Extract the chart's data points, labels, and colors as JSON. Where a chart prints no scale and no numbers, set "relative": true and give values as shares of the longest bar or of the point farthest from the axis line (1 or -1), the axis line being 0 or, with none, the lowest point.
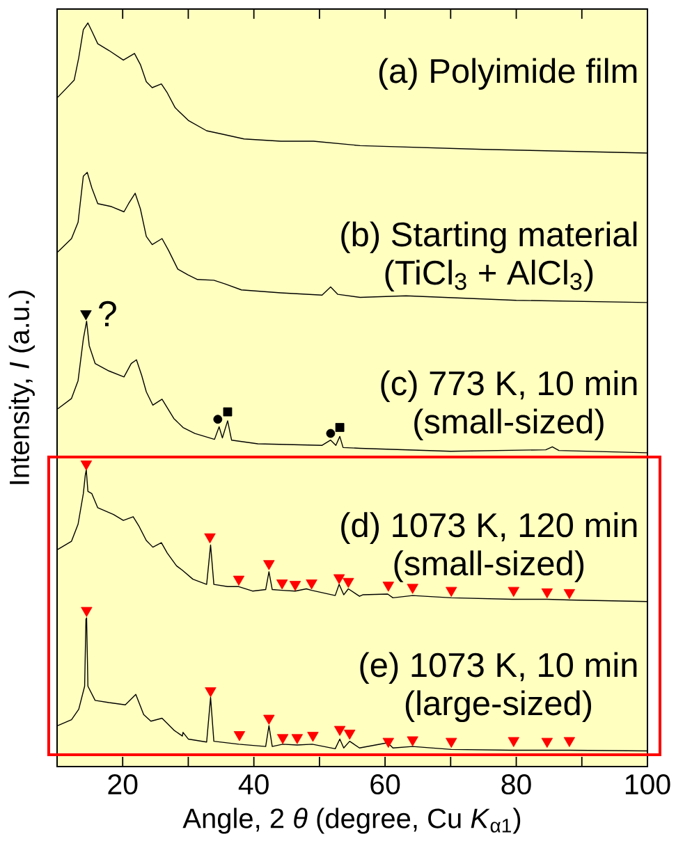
{
  "chart_data": {
    "type": "line",
    "relative": true,
    "xlabel": "Angle, 2 *θ* (degree, Cu *K*$_{α1}$)",
    "ylabel": "Intensity, *I* (a.u.)",
    "xlim": [
      10,
      100
    ],
    "xticks": [
      20,
      {
        "value": 30,
        "label": null
      },
      40,
      {
        "value": 50,
        "label": null
      },
      60,
      {
        "value": 70,
        "label": null
      },
      80,
      {
        "value": 90,
        "label": null
      },
      100
    ],
    "series": [
      {
        "name": "(a) Polyimide film",
        "color": "#000000",
        "x": [
          10.1,
          12.6,
          13.3,
          14.0,
          14.7,
          15.3,
          16.2,
          17.9,
          20.1,
          21.8,
          22.7,
          23.6,
          24.5,
          25.9,
          26.8,
          28.0,
          30.0,
          32.8,
          34.9,
          38.5,
          44.1,
          49.1,
          56.2,
          75.0,
          99.9
        ],
        "values": [
          0.9,
          0.923,
          0.953,
          0.991,
          1.0,
          0.989,
          0.972,
          0.963,
          0.95,
          0.959,
          0.944,
          0.921,
          0.913,
          0.918,
          0.906,
          0.886,
          0.869,
          0.855,
          0.851,
          0.844,
          0.841,
          0.841,
          0.835,
          0.83,
          0.825
        ]
      },
      {
        "name": "(b) Starting material",
        "color": "#000000",
        "x": [
          10.1,
          12.2,
          13.2,
          14.0,
          14.6,
          15.3,
          16.2,
          18.3,
          20.2,
          20.9,
          21.9,
          22.7,
          23.6,
          24.5,
          26.0,
          27.0,
          28.4,
          30.0,
          31.4,
          33.9,
          35.6,
          38.1,
          44.1,
          50.4,
          51.7,
          52.8,
          56.2,
          63.2,
          80.0,
          99.9
        ],
        "values": [
          0.692,
          0.71,
          0.732,
          0.794,
          0.799,
          0.778,
          0.757,
          0.753,
          0.746,
          0.757,
          0.771,
          0.75,
          0.713,
          0.702,
          0.71,
          0.694,
          0.669,
          0.661,
          0.655,
          0.654,
          0.649,
          0.641,
          0.637,
          0.634,
          0.645,
          0.635,
          0.631,
          0.633,
          0.627,
          0.624
        ]
      },
      {
        "name": "(c) 773 K, 10 min",
        "color": "#000000",
        "x": [
          10.1,
          12.2,
          13.2,
          14.0,
          14.5,
          14.9,
          15.8,
          17.9,
          20.2,
          21.3,
          22.1,
          22.9,
          23.6,
          24.6,
          26.0,
          27.8,
          29.2,
          31.0,
          34.0,
          34.7,
          35.2,
          36.0,
          36.6,
          40.6,
          50.4,
          51.7,
          52.5,
          53.1,
          53.6,
          56.2,
          70.0,
          84.5,
          85.5,
          86.5,
          99.9
        ],
        "values": [
          0.481,
          0.495,
          0.519,
          0.575,
          0.599,
          0.566,
          0.542,
          0.532,
          0.524,
          0.542,
          0.547,
          0.526,
          0.504,
          0.486,
          0.494,
          0.468,
          0.456,
          0.448,
          0.44,
          0.457,
          0.442,
          0.465,
          0.439,
          0.434,
          0.432,
          0.439,
          0.432,
          0.444,
          0.429,
          0.428,
          0.424,
          0.426,
          0.43,
          0.425,
          0.422
        ]
      },
      {
        "name": "(d) 1073 K, 120 min",
        "color": "#000000",
        "x": [
          10.1,
          12.2,
          13.2,
          14.0,
          14.3,
          14.45,
          14.7,
          15.3,
          16.2,
          18.6,
          20.1,
          21.6,
          22.5,
          23.6,
          24.6,
          25.9,
          26.8,
          28.2,
          29.1,
          30.7,
          32.8,
          33.4,
          33.9,
          36.0,
          37.7,
          39.8,
          41.8,
          42.3,
          42.8,
          44.3,
          46.3,
          48.0,
          48.8,
          52.4,
          53.0,
          53.7,
          54.4,
          56.1,
          56.6,
          60.4,
          61.2,
          64.2,
          70.1,
          79.4,
          84.7,
          88.1,
          99.9
        ],
        "values": [
          0.292,
          0.303,
          0.326,
          0.367,
          0.392,
          0.399,
          0.37,
          0.367,
          0.348,
          0.339,
          0.331,
          0.336,
          0.323,
          0.304,
          0.295,
          0.301,
          0.287,
          0.27,
          0.264,
          0.252,
          0.245,
          0.298,
          0.245,
          0.242,
          0.242,
          0.236,
          0.238,
          0.262,
          0.238,
          0.237,
          0.236,
          0.239,
          0.237,
          0.23,
          0.245,
          0.231,
          0.239,
          0.229,
          0.231,
          0.232,
          0.227,
          0.23,
          0.227,
          0.225,
          0.225,
          0.224,
          0.222
        ]
      },
      {
        "name": "(e) 1073 K, 10 min",
        "color": "#000000",
        "x": [
          10.1,
          12.2,
          13.3,
          14.2,
          14.4,
          14.5,
          14.7,
          15.8,
          17.9,
          20.4,
          22.0,
          23.2,
          24.3,
          26.0,
          27.8,
          29.1,
          29.2,
          30.0,
          32.8,
          33.4,
          33.9,
          37.7,
          41.8,
          42.3,
          42.8,
          44.4,
          46.6,
          48.9,
          52.4,
          53.1,
          53.7,
          54.6,
          56.1,
          60.4,
          61.2,
          64.2,
          70.1,
          79.4,
          84.7,
          88.1,
          99.9
        ],
        "values": [
          0.055,
          0.063,
          0.077,
          0.108,
          0.198,
          0.2,
          0.108,
          0.089,
          0.086,
          0.083,
          0.097,
          0.07,
          0.061,
          0.065,
          0.049,
          0.041,
          0.046,
          0.037,
          0.033,
          0.093,
          0.034,
          0.03,
          0.027,
          0.055,
          0.027,
          0.03,
          0.029,
          0.03,
          0.024,
          0.037,
          0.025,
          0.034,
          0.025,
          0.032,
          0.025,
          0.027,
          0.023,
          0.022,
          0.022,
          0.022,
          0.021
        ]
      },
      {
        "type": "scatter",
        "marker": "triangle",
        "color": "#ff0000",
        "x": [
          14.45,
          33.3,
          37.7,
          42.3,
          44.3,
          46.3,
          48.8,
          53.0,
          54.4,
          60.5,
          64.2,
          70.1,
          79.6,
          84.7,
          88.1
        ],
        "values": [
          0.407,
          0.309,
          0.252,
          0.273,
          0.247,
          0.245,
          0.247,
          0.254,
          0.249,
          0.244,
          0.241,
          0.237,
          0.237,
          0.235,
          0.234
        ]
      },
      {
        "type": "scatter",
        "marker": "triangle",
        "color": "#ff0000",
        "x": [
          14.5,
          33.4,
          37.8,
          42.3,
          44.4,
          46.6,
          49.0,
          53.1,
          54.6,
          60.5,
          64.2,
          70.1,
          79.6,
          84.7,
          88.1
        ],
        "values": [
          0.21,
          0.102,
          0.043,
          0.065,
          0.039,
          0.039,
          0.042,
          0.05,
          0.045,
          0.034,
          0.036,
          0.034,
          0.035,
          0.034,
          0.035
        ]
      },
      {
        "type": "scatter",
        "marker": "triangle",
        "color": "#000000",
        "x": [
          14.4
        ],
        "values": [
          0.609
        ]
      },
      {
        "type": "scatter",
        "marker": "circle",
        "color": "#000000",
        "x": [
          34.5,
          51.7
        ],
        "values": [
          0.467,
          0.448
        ]
      },
      {
        "type": "scatter",
        "marker": "square",
        "color": "#000000",
        "x": [
          36.0,
          53.1
        ],
        "values": [
          0.477,
          0.456
        ]
      }
    ],
    "annotations": [
      "(TiCl$_{3}$ + AlCl$_{3}$)",
      "(small-sized)",
      "(small-sized)",
      "(large-sized)",
      {
        "text": "?",
        "x": 14.4,
        "y": 0.609
      }
    ]
  }
}
